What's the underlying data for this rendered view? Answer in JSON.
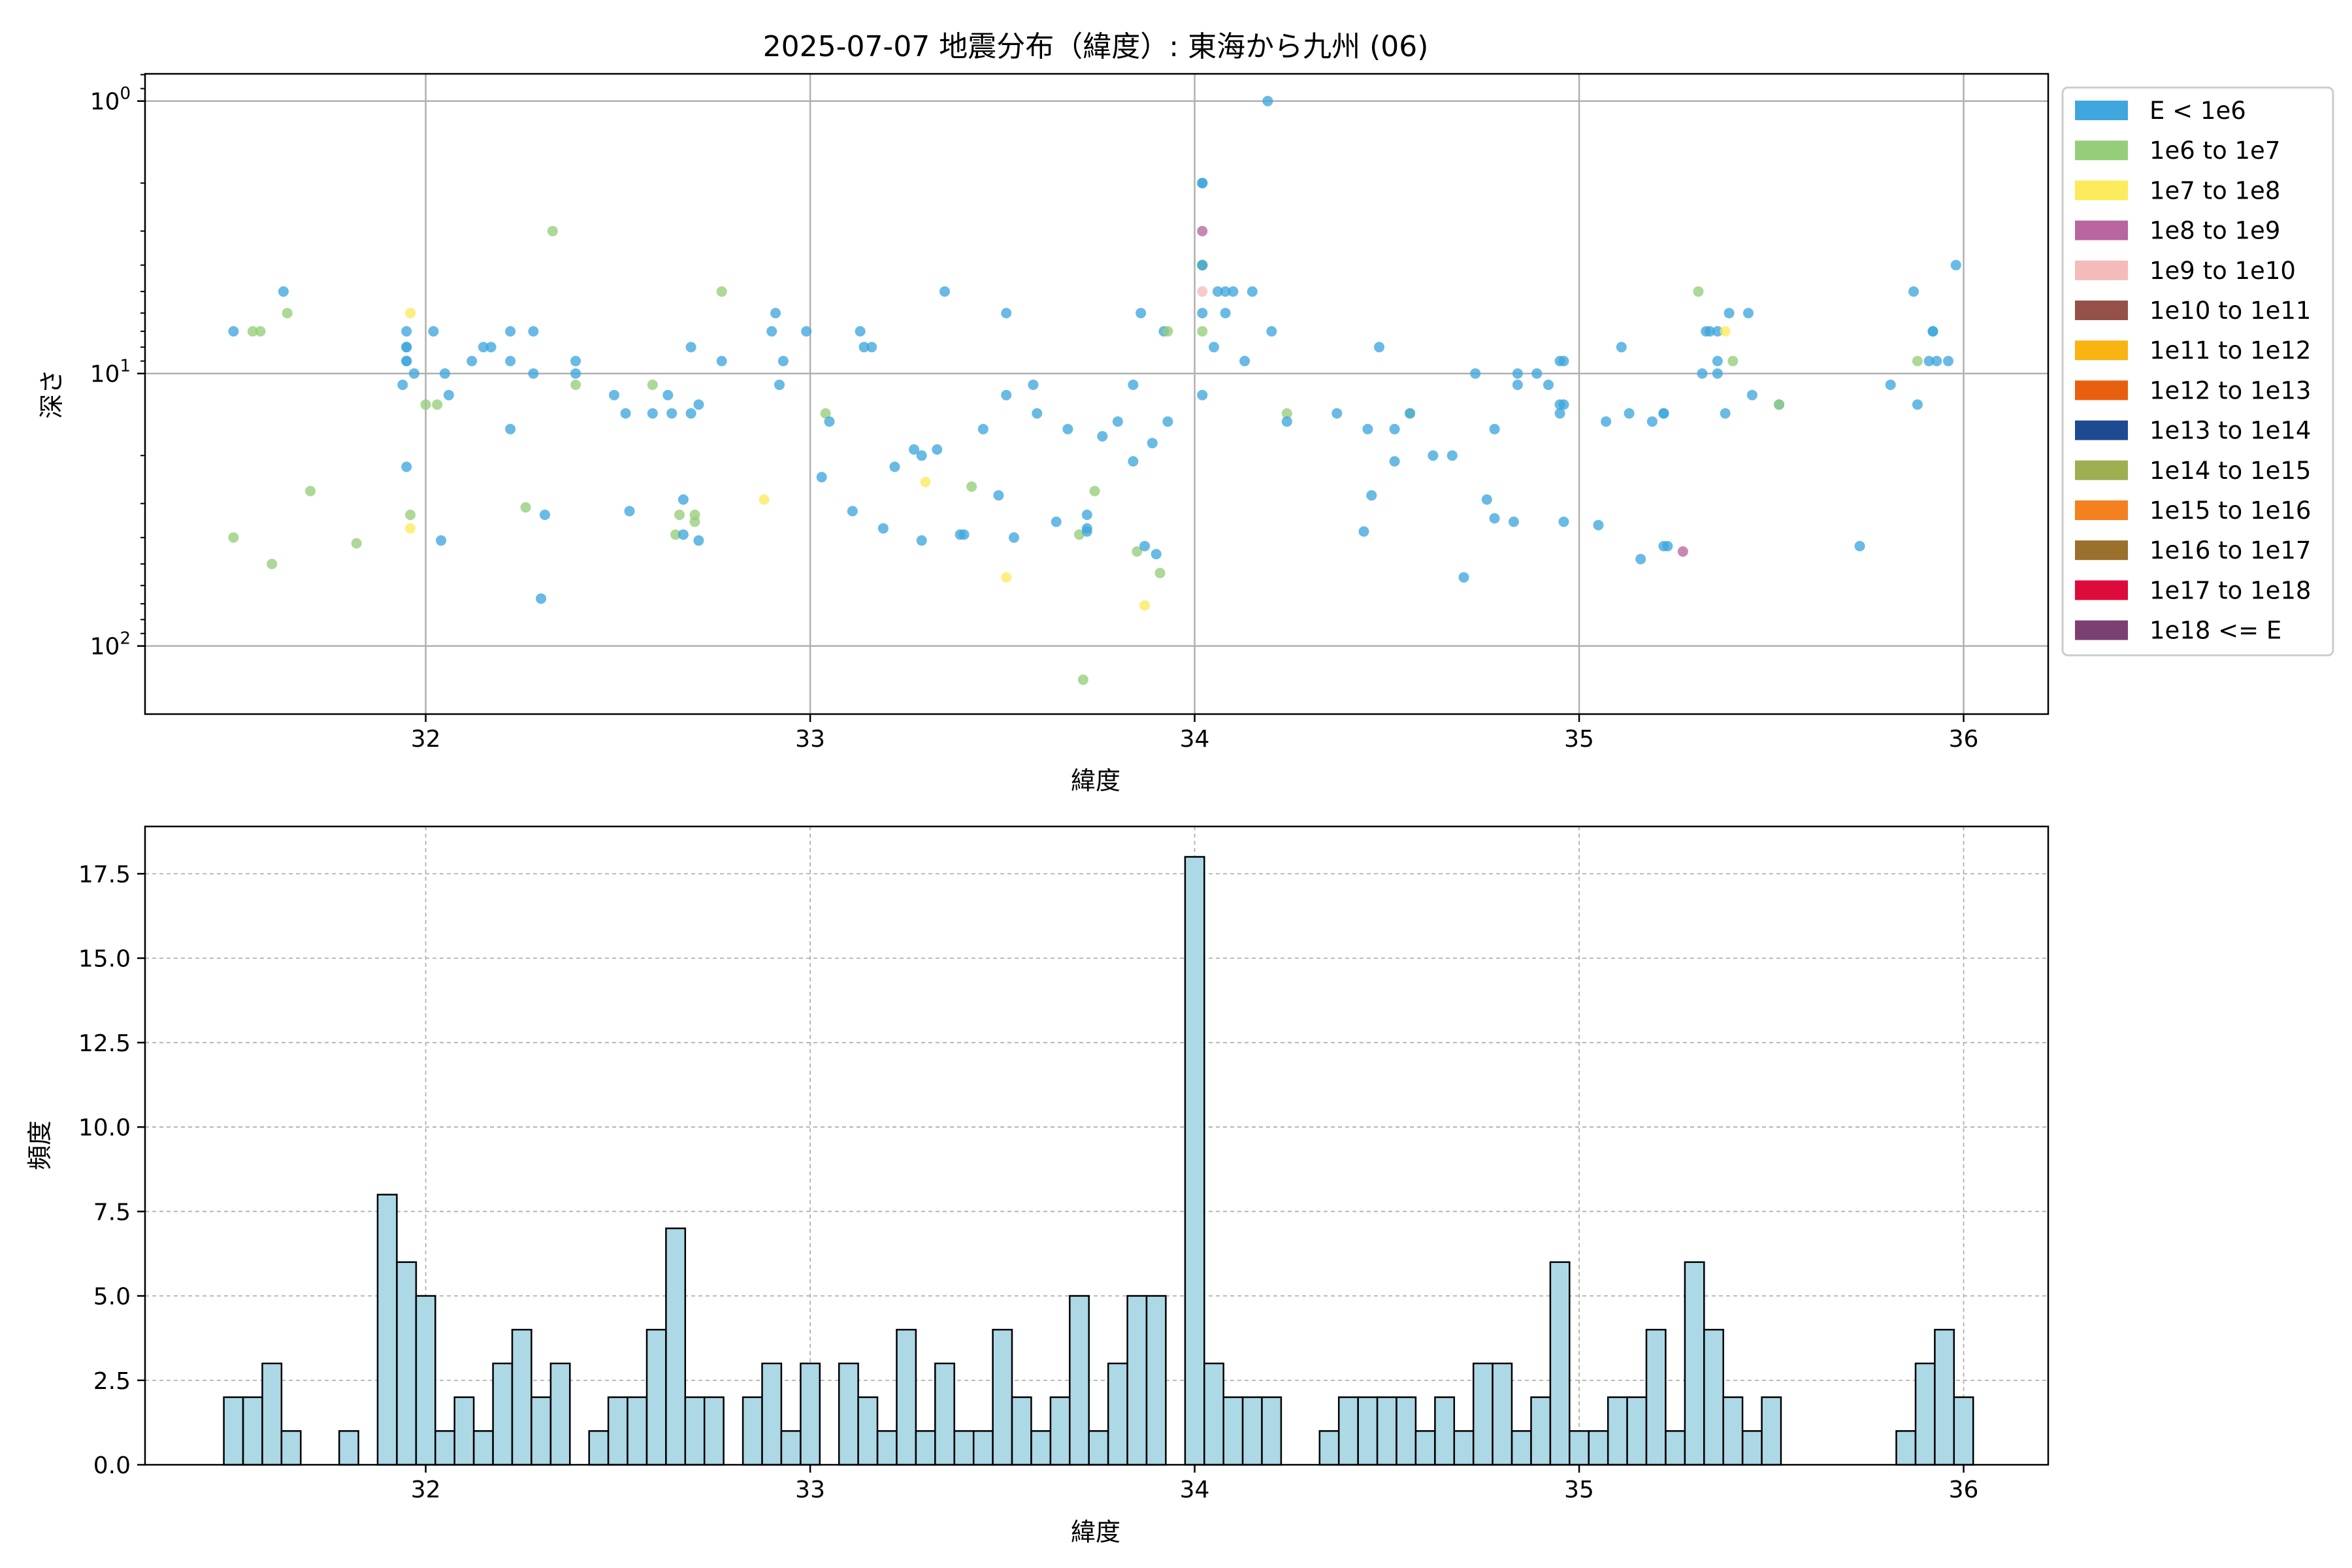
{
  "title": "2025-07-07 地震分布（緯度）: 東海から九州 (06)",
  "legend_title": "",
  "legend_labels": [
    "E < 1e6",
    "1e6 to 1e7",
    "1e7 to 1e8",
    "1e8 to 1e9",
    "1e9 to 1e10",
    "1e10 to 1e11",
    "1e11 to 1e12",
    "1e12 to 1e13",
    "1e13 to 1e14",
    "1e14 to 1e15",
    "1e15 to 1e16",
    "1e16 to 1e17",
    "1e17 to 1e18",
    "1e18 <= E"
  ],
  "legend_colors": [
    "#3fa7dd",
    "#96cd7a",
    "#fbeb5d",
    "#b9659f",
    "#f5bbba",
    "#955048",
    "#f9b313",
    "#e8600f",
    "#1e4a91",
    "#9eaf52",
    "#f4801f",
    "#9b6f2c",
    "#dd0b3b",
    "#7b3f72"
  ],
  "chart_data": [
    {
      "type": "scatter",
      "xlabel": "緯度",
      "ylabel": "深さ",
      "y_scale": "log",
      "y_inverted": true,
      "xlim": [
        31.27,
        36.22
      ],
      "ylim_log10": [
        -0.1,
        2.25
      ],
      "xticks": [
        "32",
        "33",
        "34",
        "35",
        "36"
      ],
      "xtick_values": [
        32,
        33,
        34,
        35,
        36
      ],
      "yticks": [
        "10^0",
        "10^1",
        "10^2"
      ],
      "ytick_exponents": [
        0,
        1,
        2
      ],
      "grid": true,
      "legend_position": "outside-right",
      "points": [
        [
          31.5,
          7,
          0
        ],
        [
          31.5,
          40,
          1
        ],
        [
          31.55,
          7,
          1
        ],
        [
          31.57,
          7,
          1
        ],
        [
          31.6,
          50,
          1
        ],
        [
          31.63,
          5,
          0
        ],
        [
          31.64,
          6,
          1
        ],
        [
          31.7,
          27,
          1
        ],
        [
          31.82,
          42,
          1
        ],
        [
          31.94,
          11,
          0
        ],
        [
          31.95,
          7,
          0
        ],
        [
          31.95,
          8,
          0
        ],
        [
          31.95,
          8,
          0
        ],
        [
          31.95,
          9,
          0
        ],
        [
          31.95,
          9,
          0
        ],
        [
          31.95,
          22,
          0
        ],
        [
          31.96,
          6,
          2
        ],
        [
          31.96,
          33,
          1
        ],
        [
          31.96,
          37,
          2
        ],
        [
          31.97,
          10,
          0
        ],
        [
          32.0,
          13,
          1
        ],
        [
          32.02,
          7,
          0
        ],
        [
          32.03,
          13,
          1
        ],
        [
          32.04,
          41,
          0
        ],
        [
          32.05,
          10,
          0
        ],
        [
          32.06,
          12,
          0
        ],
        [
          32.12,
          9,
          0
        ],
        [
          32.15,
          8,
          0
        ],
        [
          32.17,
          8,
          0
        ],
        [
          32.22,
          7,
          0
        ],
        [
          32.22,
          9,
          0
        ],
        [
          32.22,
          16,
          0
        ],
        [
          32.26,
          31,
          1
        ],
        [
          32.28,
          7,
          0
        ],
        [
          32.28,
          10,
          0
        ],
        [
          32.3,
          67,
          0
        ],
        [
          32.31,
          33,
          0
        ],
        [
          32.33,
          3,
          1
        ],
        [
          32.39,
          9,
          0
        ],
        [
          32.39,
          10,
          0
        ],
        [
          32.39,
          11,
          1
        ],
        [
          32.49,
          12,
          0
        ],
        [
          32.52,
          14,
          0
        ],
        [
          32.53,
          32,
          0
        ],
        [
          32.59,
          11,
          1
        ],
        [
          32.59,
          14,
          0
        ],
        [
          32.63,
          12,
          0
        ],
        [
          32.64,
          14,
          0
        ],
        [
          32.65,
          39,
          1
        ],
        [
          32.66,
          33,
          1
        ],
        [
          32.67,
          29,
          0
        ],
        [
          32.67,
          39,
          0
        ],
        [
          32.69,
          8,
          0
        ],
        [
          32.69,
          14,
          0
        ],
        [
          32.7,
          33,
          1
        ],
        [
          32.7,
          35,
          1
        ],
        [
          32.71,
          13,
          0
        ],
        [
          32.71,
          41,
          0
        ],
        [
          32.77,
          5,
          1
        ],
        [
          32.77,
          9,
          0
        ],
        [
          32.88,
          29,
          2
        ],
        [
          32.9,
          7,
          0
        ],
        [
          32.91,
          6,
          0
        ],
        [
          32.92,
          11,
          0
        ],
        [
          32.93,
          9,
          0
        ],
        [
          32.99,
          7,
          0
        ],
        [
          33.03,
          24,
          0
        ],
        [
          33.04,
          14,
          1
        ],
        [
          33.05,
          15,
          0
        ],
        [
          33.11,
          32,
          0
        ],
        [
          33.13,
          7,
          0
        ],
        [
          33.14,
          8,
          0
        ],
        [
          33.16,
          8,
          0
        ],
        [
          33.19,
          37,
          0
        ],
        [
          33.22,
          22,
          0
        ],
        [
          33.27,
          19,
          0
        ],
        [
          33.29,
          20,
          0
        ],
        [
          33.29,
          41,
          0
        ],
        [
          33.3,
          25,
          2
        ],
        [
          33.33,
          19,
          0
        ],
        [
          33.35,
          5,
          0
        ],
        [
          33.39,
          39,
          0
        ],
        [
          33.4,
          39,
          0
        ],
        [
          33.42,
          26,
          1
        ],
        [
          33.45,
          16,
          0
        ],
        [
          33.49,
          28,
          0
        ],
        [
          33.51,
          56,
          2
        ],
        [
          33.51,
          12,
          0
        ],
        [
          33.51,
          6,
          0
        ],
        [
          33.53,
          40,
          0
        ],
        [
          33.58,
          11,
          0
        ],
        [
          33.59,
          14,
          0
        ],
        [
          33.64,
          35,
          0
        ],
        [
          33.67,
          16,
          0
        ],
        [
          33.7,
          39,
          1
        ],
        [
          33.71,
          133,
          1
        ],
        [
          33.72,
          33,
          0
        ],
        [
          33.72,
          37,
          0
        ],
        [
          33.72,
          38,
          0
        ],
        [
          33.74,
          27,
          1
        ],
        [
          33.76,
          17,
          0
        ],
        [
          33.8,
          15,
          0
        ],
        [
          33.84,
          11,
          0
        ],
        [
          33.84,
          21,
          0
        ],
        [
          33.85,
          45,
          1
        ],
        [
          33.86,
          6,
          0
        ],
        [
          33.87,
          71,
          2
        ],
        [
          33.87,
          43,
          0
        ],
        [
          33.89,
          18,
          0
        ],
        [
          33.9,
          46,
          0
        ],
        [
          33.91,
          54,
          1
        ],
        [
          33.92,
          7,
          0
        ],
        [
          33.93,
          7,
          1
        ],
        [
          33.93,
          15,
          0
        ],
        [
          34.02,
          12,
          0
        ],
        [
          34.02,
          2,
          0
        ],
        [
          34.02,
          2,
          0
        ],
        [
          34.02,
          3,
          3
        ],
        [
          34.02,
          4,
          1
        ],
        [
          34.02,
          4,
          1
        ],
        [
          34.02,
          4,
          0
        ],
        [
          34.02,
          4,
          1
        ],
        [
          34.02,
          4,
          0
        ],
        [
          34.02,
          5,
          4
        ],
        [
          34.02,
          6,
          0
        ],
        [
          34.02,
          7,
          1
        ],
        [
          34.05,
          8,
          0
        ],
        [
          34.06,
          5,
          0
        ],
        [
          34.08,
          5,
          0
        ],
        [
          34.08,
          6,
          0
        ],
        [
          34.1,
          5,
          0
        ],
        [
          34.13,
          9,
          0
        ],
        [
          34.15,
          5,
          0
        ],
        [
          34.19,
          1,
          0
        ],
        [
          34.2,
          7,
          0
        ],
        [
          34.24,
          14,
          1
        ],
        [
          34.24,
          15,
          0
        ],
        [
          34.37,
          14,
          0
        ],
        [
          34.44,
          38,
          0
        ],
        [
          34.45,
          16,
          0
        ],
        [
          34.46,
          28,
          0
        ],
        [
          34.48,
          8,
          0
        ],
        [
          34.52,
          21,
          0
        ],
        [
          34.52,
          16,
          0
        ],
        [
          34.56,
          14,
          1
        ],
        [
          34.56,
          14,
          0
        ],
        [
          34.62,
          20,
          0
        ],
        [
          34.67,
          20,
          0
        ],
        [
          34.7,
          56,
          0
        ],
        [
          34.73,
          10,
          0
        ],
        [
          34.76,
          29,
          0
        ],
        [
          34.78,
          16,
          0
        ],
        [
          34.78,
          34,
          0
        ],
        [
          34.83,
          35,
          0
        ],
        [
          34.84,
          11,
          0
        ],
        [
          34.84,
          10,
          0
        ],
        [
          34.89,
          10,
          0
        ],
        [
          34.92,
          11,
          0
        ],
        [
          34.95,
          9,
          0
        ],
        [
          34.95,
          13,
          0
        ],
        [
          34.95,
          14,
          0
        ],
        [
          34.96,
          9,
          0
        ],
        [
          34.96,
          13,
          0
        ],
        [
          34.96,
          35,
          0
        ],
        [
          35.05,
          36,
          0
        ],
        [
          35.07,
          15,
          0
        ],
        [
          35.11,
          8,
          0
        ],
        [
          35.13,
          14,
          0
        ],
        [
          35.16,
          48,
          0
        ],
        [
          35.19,
          15,
          0
        ],
        [
          35.22,
          14,
          0
        ],
        [
          35.22,
          14,
          0
        ],
        [
          35.22,
          43,
          0
        ],
        [
          35.23,
          43,
          0
        ],
        [
          35.27,
          45,
          3
        ],
        [
          35.31,
          5,
          1
        ],
        [
          35.32,
          10,
          0
        ],
        [
          35.33,
          7,
          0
        ],
        [
          35.34,
          7,
          0
        ],
        [
          35.36,
          7,
          0
        ],
        [
          35.36,
          9,
          0
        ],
        [
          35.36,
          10,
          0
        ],
        [
          35.38,
          7,
          2
        ],
        [
          35.38,
          14,
          0
        ],
        [
          35.39,
          6,
          0
        ],
        [
          35.4,
          9,
          1
        ],
        [
          35.44,
          6,
          0
        ],
        [
          35.45,
          12,
          0
        ],
        [
          35.52,
          13,
          0
        ],
        [
          35.52,
          13,
          1
        ],
        [
          35.73,
          43,
          0
        ],
        [
          35.81,
          11,
          0
        ],
        [
          35.87,
          5,
          0
        ],
        [
          35.88,
          9,
          1
        ],
        [
          35.88,
          13,
          0
        ],
        [
          35.91,
          9,
          0
        ],
        [
          35.92,
          7,
          0
        ],
        [
          35.92,
          7,
          0
        ],
        [
          35.93,
          9,
          0
        ],
        [
          35.96,
          9,
          0
        ],
        [
          35.98,
          4,
          0
        ]
      ]
    },
    {
      "type": "bar",
      "xlabel": "緯度",
      "ylabel": "頻度",
      "xlim": [
        31.27,
        36.22
      ],
      "ylim": [
        0,
        18.9
      ],
      "xticks": [
        "32",
        "33",
        "34",
        "35",
        "36"
      ],
      "xtick_values": [
        32,
        33,
        34,
        35,
        36
      ],
      "yticks": [
        "0.0",
        "2.5",
        "5.0",
        "7.5",
        "10.0",
        "12.5",
        "15.0",
        "17.5"
      ],
      "ytick_values": [
        0,
        2.5,
        5,
        7.5,
        10,
        12.5,
        15,
        17.5
      ],
      "grid": true,
      "bin_start": 31.475,
      "bin_width": 0.05,
      "values": [
        2,
        2,
        3,
        1,
        0,
        0,
        1,
        0,
        8,
        6,
        5,
        1,
        2,
        1,
        3,
        4,
        2,
        3,
        0,
        1,
        2,
        2,
        4,
        7,
        2,
        2,
        0,
        2,
        3,
        1,
        3,
        0,
        3,
        2,
        1,
        4,
        1,
        3,
        1,
        1,
        4,
        2,
        1,
        2,
        5,
        1,
        3,
        5,
        5,
        0,
        18,
        3,
        2,
        2,
        2,
        0,
        0,
        1,
        2,
        2,
        2,
        2,
        1,
        2,
        1,
        3,
        3,
        1,
        2,
        6,
        1,
        1,
        2,
        2,
        4,
        1,
        6,
        4,
        2,
        1,
        2,
        0,
        0,
        0,
        0,
        0,
        0,
        1,
        3,
        4,
        2
      ]
    }
  ]
}
